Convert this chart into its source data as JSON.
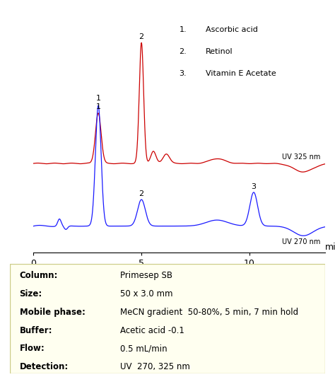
{
  "xlim": [
    0,
    13.5
  ],
  "xticks": [
    0,
    5,
    10
  ],
  "xlabel": "min",
  "legend_items": [
    [
      "1.",
      "Ascorbic acid"
    ],
    [
      "2.",
      "Retinol"
    ],
    [
      "3.",
      "Vitamin E Acetate"
    ]
  ],
  "uv325_label": "UV 325 nm",
  "uv270_label": "UV 270 nm",
  "red_color": "#cc0000",
  "blue_color": "#1a1aff",
  "table_bg": "#fffff0",
  "table_border": "#cccc88",
  "table_labels": [
    "Column:",
    "Size:",
    "Mobile phase:",
    "Buffer:",
    "Flow:",
    "Detection:"
  ],
  "table_values": [
    "Primesep SB",
    "50 x 3.0 mm",
    "MeCN gradient  50-80%, 5 min, 7 min hold",
    "Acetic acid -0.1",
    "0.5 mL/min",
    "UV  270, 325 nm"
  ]
}
